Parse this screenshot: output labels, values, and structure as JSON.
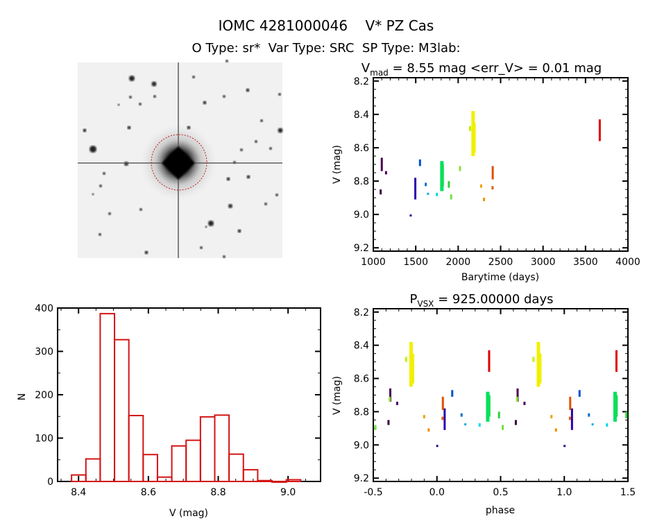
{
  "header": {
    "title": "IOMC 4281000046    V* PZ Cas",
    "subtitle": "O Type: sr*  Var Type: SRC  SP Type: M3lab:"
  },
  "colors": {
    "histogram": "#d41414",
    "axes": "#000000"
  },
  "chart_data": [
    {
      "type": "image",
      "description_label": "",
      "marker": "red dashed circle around target"
    },
    {
      "type": "scatter",
      "title_main": "V",
      "title_sub": "mad",
      "title_rest": " = 8.55 mag <err_V> = 0.01 mag",
      "xlabel": "Barytime (days)",
      "ylabel": "V (mag)",
      "xlim": [
        1000,
        4000
      ],
      "ylim": [
        9.22,
        8.18
      ],
      "y_inverted": true,
      "xticks": [
        1000,
        1500,
        2000,
        2500,
        3000,
        3500,
        4000
      ],
      "yticks": [
        "8.2",
        "8.4",
        "8.6",
        "8.8",
        "9.0",
        "9.2"
      ],
      "grid": false,
      "clusters": [
        {
          "t": 1100,
          "v": [
            8.66,
            8.74
          ],
          "color": "#4a0050"
        },
        {
          "t": 1150,
          "v": [
            8.74,
            8.76
          ],
          "color": "#4a0060"
        },
        {
          "t": 1087,
          "v": [
            8.85,
            8.88
          ],
          "color": "#3a0040"
        },
        {
          "t": 1495,
          "v": [
            8.78,
            8.91
          ],
          "color": "#2a00b0"
        },
        {
          "t": 1441,
          "v": [
            9.0,
            9.01
          ],
          "color": "#3000a0"
        },
        {
          "t": 1550,
          "v": [
            8.67,
            8.71
          ],
          "color": "#0050d0"
        },
        {
          "t": 1618,
          "v": [
            8.81,
            8.83
          ],
          "color": "#0070d0"
        },
        {
          "t": 1645,
          "v": [
            8.87,
            8.88
          ],
          "color": "#00a8e0"
        },
        {
          "t": 1749,
          "v": [
            8.87,
            8.89
          ],
          "color": "#00d8e8"
        },
        {
          "t": 1808,
          "v": [
            8.68,
            8.86
          ],
          "color": "#00e060"
        },
        {
          "t": 1820,
          "v": [
            8.7,
            8.83
          ],
          "color": "#10e050"
        },
        {
          "t": 1890,
          "v": [
            8.8,
            8.84
          ],
          "color": "#30d040"
        },
        {
          "t": 1917,
          "v": [
            8.88,
            8.91
          ],
          "color": "#70e040"
        },
        {
          "t": 2021,
          "v": [
            8.71,
            8.74
          ],
          "color": "#90e040"
        },
        {
          "t": 2140,
          "v": [
            8.47,
            8.5
          ],
          "color": "#c0f000"
        },
        {
          "t": 2176,
          "v": [
            8.38,
            8.65
          ],
          "color": "#f0f000"
        },
        {
          "t": 2186,
          "v": [
            8.45,
            8.63
          ],
          "color": "#f0f000"
        },
        {
          "t": 2271,
          "v": [
            8.82,
            8.84
          ],
          "color": "#f0a000"
        },
        {
          "t": 2304,
          "v": [
            8.9,
            8.92
          ],
          "color": "#f09000"
        },
        {
          "t": 2407,
          "v": [
            8.71,
            8.79
          ],
          "color": "#e05000"
        },
        {
          "t": 2405,
          "v": [
            8.83,
            8.85
          ],
          "color": "#e06000"
        },
        {
          "t": 3668,
          "v": [
            8.43,
            8.56
          ],
          "color": "#e00000"
        }
      ]
    },
    {
      "type": "bar",
      "xlabel": "V (mag)",
      "ylabel": "N",
      "xlim": [
        8.34,
        9.093
      ],
      "ylim": [
        0,
        400
      ],
      "xticks": [
        "8.4",
        "8.6",
        "8.8",
        "9.0"
      ],
      "yticks": [
        "0",
        "100",
        "200",
        "300",
        "400"
      ],
      "bin_start": 8.38,
      "bin_width": 0.041,
      "values": [
        15,
        52,
        387,
        327,
        152,
        62,
        10,
        82,
        95,
        149,
        153,
        63,
        27,
        2,
        0,
        4
      ]
    },
    {
      "type": "scatter",
      "title_main": "P",
      "title_sub": "VSX",
      "title_rest": " = 925.00000 days",
      "period": 925.0,
      "xlabel": "phase",
      "ylabel": "V (mag)",
      "xlim": [
        -0.5,
        1.5
      ],
      "ylim": [
        9.22,
        8.18
      ],
      "y_inverted": true,
      "xticks": [
        "-0.5",
        "0.0",
        "0.5",
        "1.0",
        "1.5"
      ],
      "yticks": [
        "8.2",
        "8.4",
        "8.6",
        "8.8",
        "9.0",
        "9.2"
      ],
      "grid": false
    }
  ]
}
